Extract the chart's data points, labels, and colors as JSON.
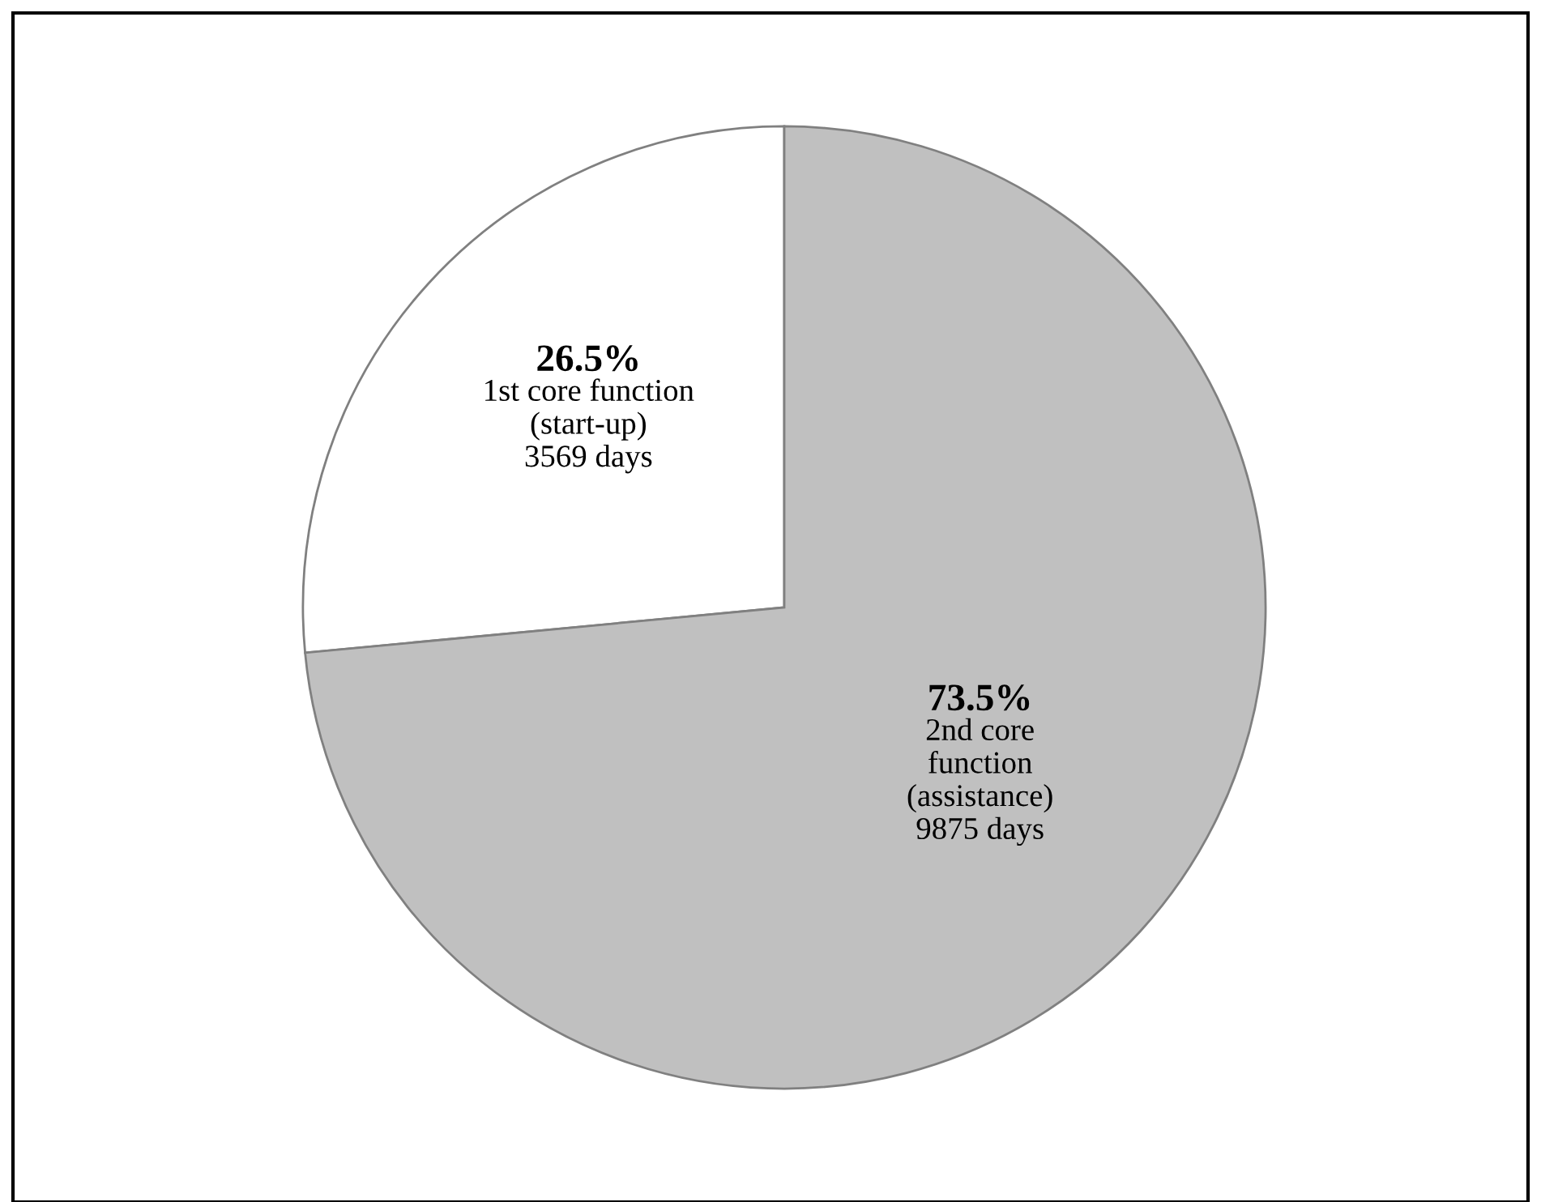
{
  "chart_data": {
    "type": "pie",
    "categories": [
      "1st core function\n(start-up)\n3569 days",
      "2nd core\nfunction\n(assistance)\n9875 days"
    ],
    "values": [
      26.5,
      73.5
    ],
    "value_labels": [
      "26.5%",
      "73.5%"
    ],
    "colors": [
      "#ffffff",
      "#c0c0c0"
    ]
  }
}
